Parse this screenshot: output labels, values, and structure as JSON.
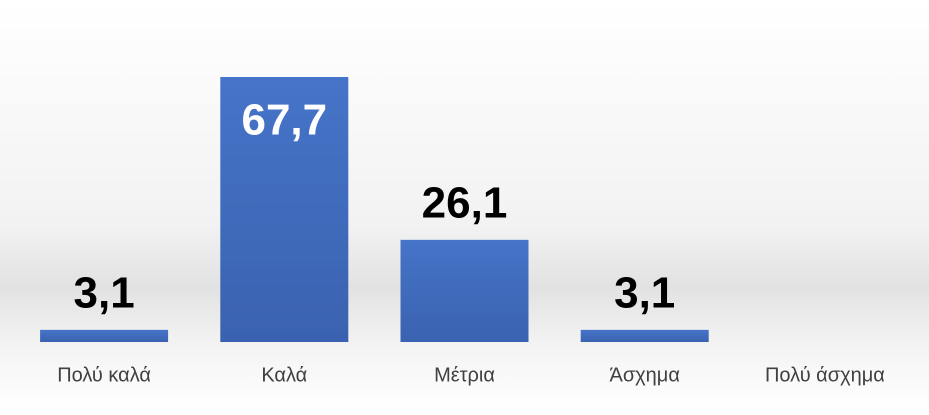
{
  "chart_data": {
    "type": "bar",
    "categories": [
      "Πολύ καλά",
      "Καλά",
      "Μέτρια",
      "Άσχημα",
      "Πολύ άσχημα"
    ],
    "values": [
      3.1,
      67.7,
      26.1,
      3.1,
      null
    ],
    "value_labels": [
      "3,1",
      "67,7",
      "26,1",
      "3,1",
      null
    ],
    "color": "#4472c4",
    "ylim": [
      0,
      70
    ]
  }
}
